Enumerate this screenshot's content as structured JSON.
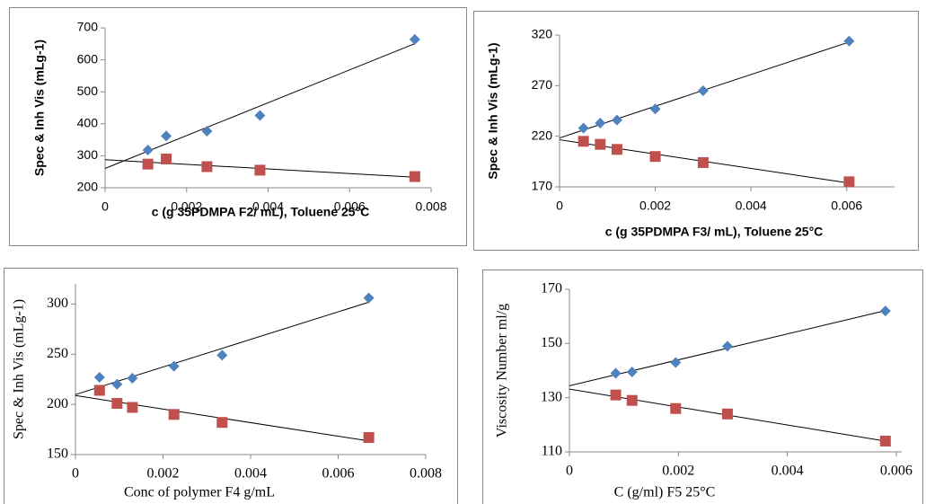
{
  "chart_data": [
    {
      "type": "scatter",
      "trendline": true,
      "x_label": "c (g 35PDMPA F2/ mL),  Toluene 25°C",
      "y_label": "Spec & Inh Vis (mLg-1)",
      "x": [
        0.00105,
        0.0015,
        0.0025,
        0.0038,
        0.0076
      ],
      "series": [
        {
          "color": "#4f81bd",
          "marker": "diamond",
          "values": [
            318,
            362,
            377,
            426,
            664
          ]
        },
        {
          "color": "#c0504d",
          "marker": "square",
          "values": [
            274,
            290,
            266,
            255,
            235
          ]
        }
      ],
      "xlim": [
        0,
        0.008
      ],
      "xticks": [
        0,
        0.002,
        0.004,
        0.006,
        0.008
      ],
      "ylim": [
        200,
        700
      ],
      "yticks": [
        200,
        300,
        400,
        500,
        600,
        700
      ]
    },
    {
      "type": "scatter",
      "trendline": true,
      "x_label": "c (g 35PDMPA F3/ mL),  Toluene 25°C",
      "y_label": "Spec & Inh Vis (mLg-1)",
      "x": [
        0.0005,
        0.00085,
        0.0012,
        0.002,
        0.003,
        0.00605
      ],
      "series": [
        {
          "color": "#4f81bd",
          "marker": "diamond",
          "values": [
            228,
            233,
            236,
            247,
            265,
            314
          ]
        },
        {
          "color": "#c0504d",
          "marker": "square",
          "values": [
            215,
            212,
            207,
            200,
            194,
            175
          ]
        }
      ],
      "xlim": [
        0,
        0.007
      ],
      "xticks": [
        0,
        0.002,
        0.004,
        0.006
      ],
      "ylim": [
        170,
        320
      ],
      "yticks": [
        170,
        220,
        270,
        320
      ]
    },
    {
      "type": "scatter",
      "trendline": true,
      "x_label": "Conc of polymer F4 g/mL",
      "y_label": "Spec & Inh Vis (mLg-1)",
      "x": [
        0.00055,
        0.00095,
        0.0013,
        0.00225,
        0.00335,
        0.0067
      ],
      "series": [
        {
          "color": "#4f81bd",
          "marker": "diamond",
          "values": [
            227,
            220,
            226,
            238,
            249,
            306
          ]
        },
        {
          "color": "#c0504d",
          "marker": "square",
          "values": [
            214,
            201,
            197,
            190,
            182,
            167
          ]
        }
      ],
      "xlim": [
        0,
        0.008
      ],
      "xticks": [
        0,
        0.002,
        0.004,
        0.006,
        0.008
      ],
      "ylim": [
        150,
        320
      ],
      "yticks": [
        150,
        200,
        250,
        300
      ]
    },
    {
      "type": "scatter",
      "trendline": true,
      "x_label": "C (g/ml)  F5  25°C",
      "y_label": "Viscosity Number ml/g",
      "x": [
        0.00085,
        0.00115,
        0.00195,
        0.0029,
        0.0058
      ],
      "series": [
        {
          "color": "#4f81bd",
          "marker": "diamond",
          "values": [
            139,
            139.5,
            143,
            149,
            162
          ]
        },
        {
          "color": "#c0504d",
          "marker": "square",
          "values": [
            131,
            129,
            126,
            124,
            114
          ]
        }
      ],
      "xlim": [
        0,
        0.0061
      ],
      "xticks": [
        0,
        0.002,
        0.004,
        0.006
      ],
      "ylim": [
        110,
        170
      ],
      "yticks": [
        110,
        130,
        150,
        170
      ]
    }
  ]
}
